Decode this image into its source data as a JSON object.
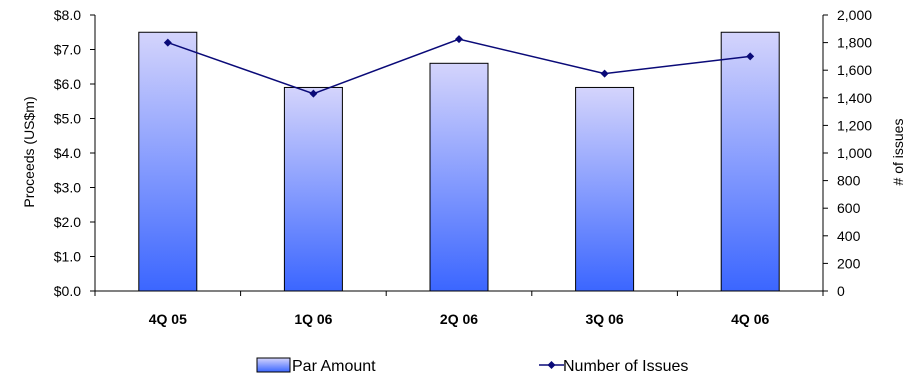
{
  "chart_data": {
    "type": "bar",
    "categories": [
      "4Q 05",
      "1Q 06",
      "2Q 06",
      "3Q 06",
      "4Q 06"
    ],
    "series": [
      {
        "name": "Par Amount",
        "type": "bar",
        "axis": "left",
        "values": [
          7.5,
          5.9,
          6.6,
          5.9,
          7.5
        ]
      },
      {
        "name": "Number of Issues",
        "type": "line",
        "axis": "right",
        "values": [
          1800,
          1430,
          1825,
          1575,
          1700
        ]
      }
    ],
    "ylabel": "Proceeds (US$m)",
    "ylabel_right": "# of issues",
    "ylim": [
      0,
      8
    ],
    "ylim_right": [
      0,
      2000
    ],
    "yticks": [
      "$0.0",
      "$1.0",
      "$2.0",
      "$3.0",
      "$4.0",
      "$5.0",
      "$6.0",
      "$7.0",
      "$8.0"
    ],
    "yticks_right": [
      "0",
      "200",
      "400",
      "600",
      "800",
      "1,000",
      "1,200",
      "1,400",
      "1,600",
      "1,800",
      "2,000"
    ],
    "legend_position": "bottom",
    "grid": false,
    "colors": {
      "bar_top": "#d4d4fc",
      "bar_bottom": "#3b66ff",
      "line": "#0a0a78",
      "axis": "#000000"
    }
  }
}
